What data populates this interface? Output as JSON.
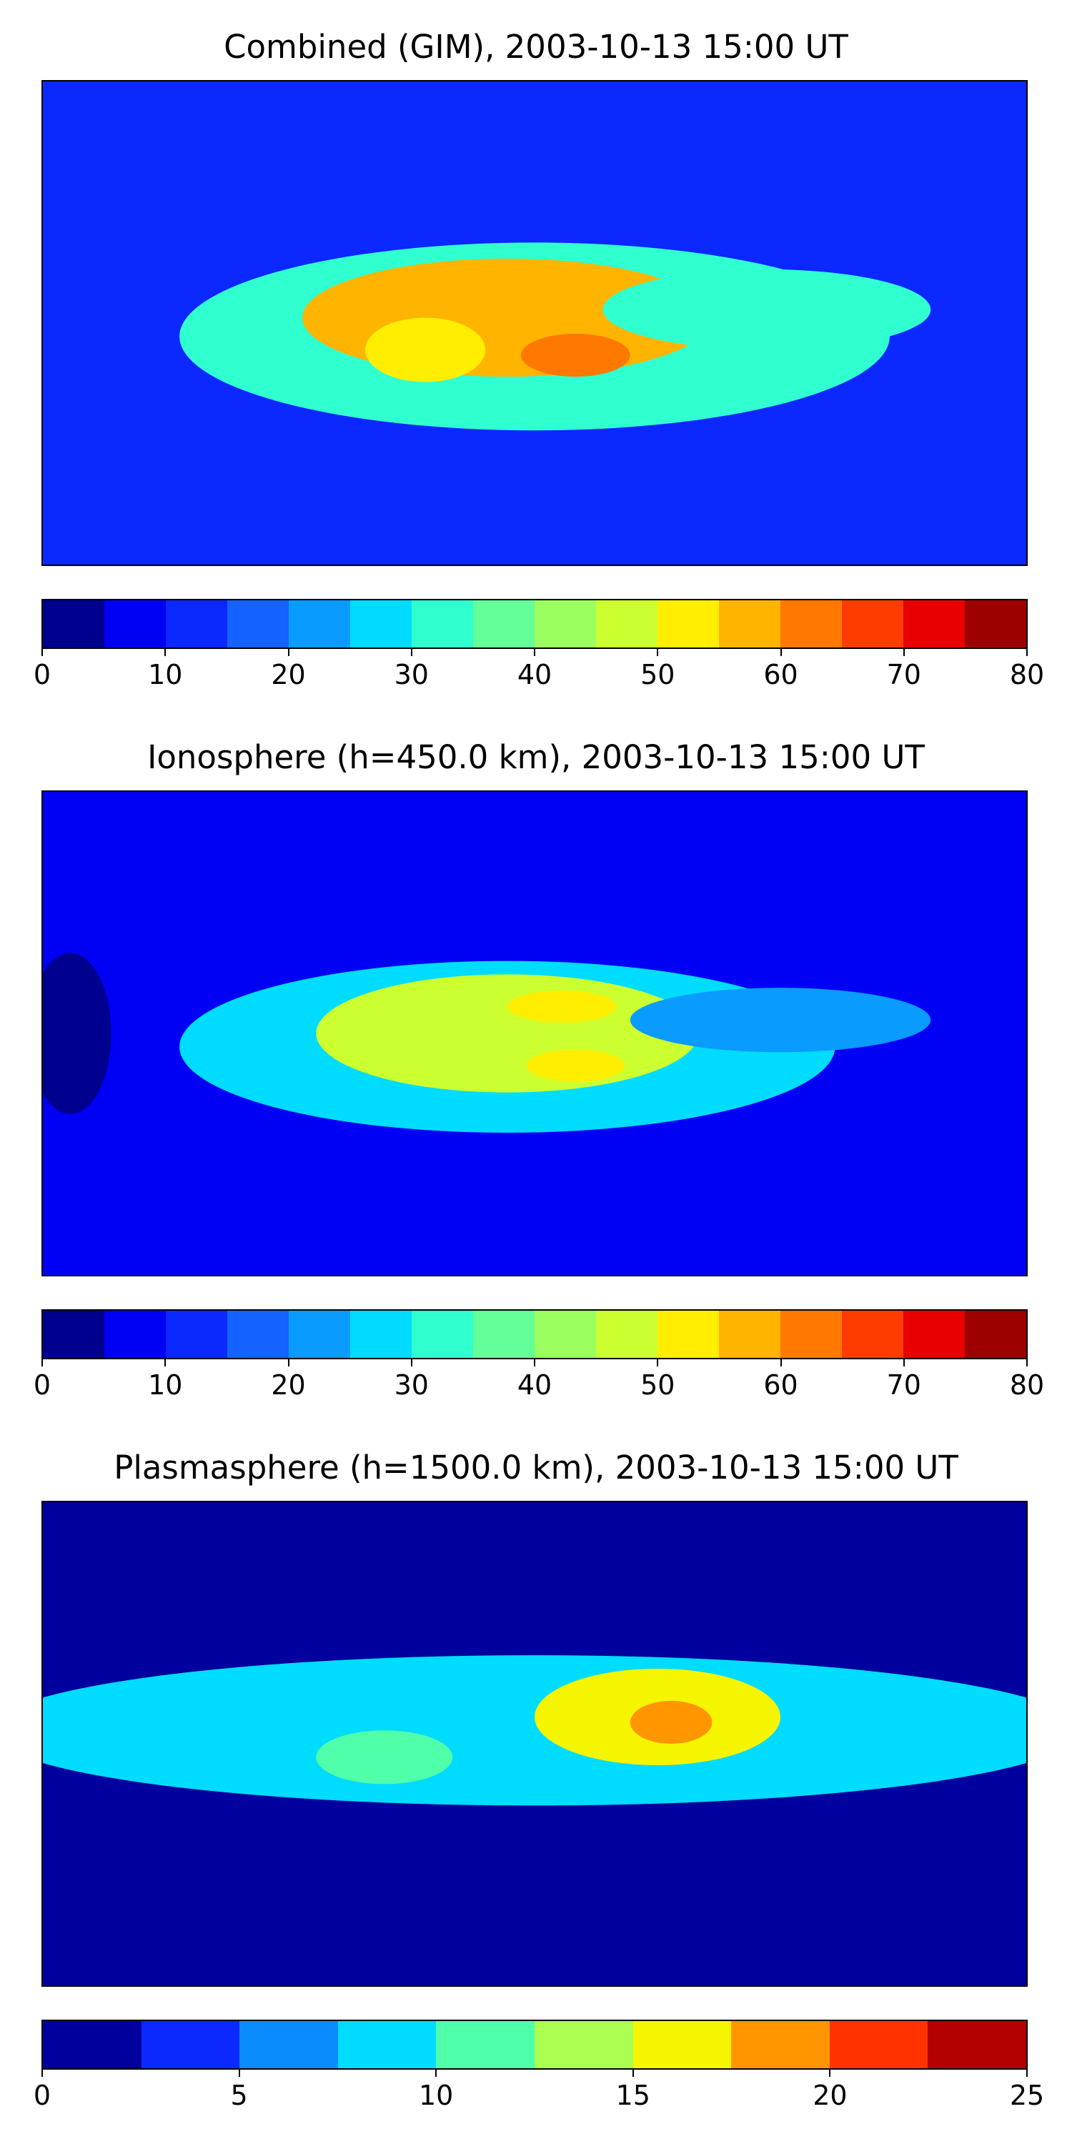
{
  "chart_data": [
    {
      "type": "heatmap",
      "title": "Combined (GIM), 2003-10-13 15:00 UT",
      "x_range": [
        -180,
        180
      ],
      "y_range": [
        -90,
        90
      ],
      "colorbar": {
        "min": 0,
        "max": 80,
        "step": 5,
        "ticks": [
          0,
          10,
          20,
          30,
          40,
          50,
          60,
          70,
          80
        ],
        "colors": [
          "#00008f",
          "#0000f5",
          "#0a28ff",
          "#1462ff",
          "#0a9bff",
          "#00dcff",
          "#30ffd0",
          "#64ff98",
          "#9cff60",
          "#ccff30",
          "#ffee00",
          "#ffb400",
          "#ff7800",
          "#ff3c00",
          "#e80000",
          "#9e0000"
        ]
      },
      "background_value": 13,
      "features": [
        {
          "name": "equatorial-belt",
          "lon": 0,
          "lat": -5,
          "lon_radius": 130,
          "lat_radius": 35,
          "value": 33
        },
        {
          "name": "atlantic-peak",
          "lon": -10,
          "lat": 2,
          "lon_radius": 75,
          "lat_radius": 22,
          "value": 58
        },
        {
          "name": "south-america-crest",
          "lon": -40,
          "lat": -10,
          "lon_radius": 22,
          "lat_radius": 12,
          "value": 53
        },
        {
          "name": "africa-crest",
          "lon": 15,
          "lat": -12,
          "lon_radius": 20,
          "lat_radius": 8,
          "value": 63
        },
        {
          "name": "indian-ocean-tongue",
          "lon": 85,
          "lat": 5,
          "lon_radius": 60,
          "lat_radius": 15,
          "value": 33
        },
        {
          "name": "pacific-low",
          "lon": -150,
          "lat": -15,
          "lon_radius": 20,
          "lat_radius": 18,
          "value": 10
        }
      ]
    },
    {
      "type": "heatmap",
      "title": "Ionosphere  (h=450.0 km), 2003-10-13 15:00 UT",
      "x_range": [
        -180,
        180
      ],
      "y_range": [
        -90,
        90
      ],
      "colorbar": {
        "min": 0,
        "max": 80,
        "step": 5,
        "ticks": [
          0,
          10,
          20,
          30,
          40,
          50,
          60,
          70,
          80
        ],
        "colors": [
          "#00008f",
          "#0000f5",
          "#0a28ff",
          "#1462ff",
          "#0a9bff",
          "#00dcff",
          "#30ffd0",
          "#64ff98",
          "#9cff60",
          "#ccff30",
          "#ffee00",
          "#ffb400",
          "#ff7800",
          "#ff3c00",
          "#e80000",
          "#9e0000"
        ]
      },
      "background_value": 9,
      "features": [
        {
          "name": "equatorial-belt",
          "lon": -10,
          "lat": -5,
          "lon_radius": 120,
          "lat_radius": 32,
          "value": 26
        },
        {
          "name": "atlantic-peak",
          "lon": -10,
          "lat": 0,
          "lon_radius": 70,
          "lat_radius": 22,
          "value": 46
        },
        {
          "name": "north-crest",
          "lon": 10,
          "lat": 10,
          "lon_radius": 20,
          "lat_radius": 6,
          "value": 51
        },
        {
          "name": "south-crest",
          "lon": 15,
          "lat": -12,
          "lon_radius": 18,
          "lat_radius": 6,
          "value": 51
        },
        {
          "name": "indian-ocean-tongue",
          "lon": 90,
          "lat": 5,
          "lon_radius": 55,
          "lat_radius": 12,
          "value": 24
        },
        {
          "name": "pacific-low",
          "lon": -170,
          "lat": 0,
          "lon_radius": 15,
          "lat_radius": 30,
          "value": 4
        }
      ]
    },
    {
      "type": "heatmap",
      "title": "Plasmasphere (h=1500.0 km), 2003-10-13 15:00 UT",
      "x_range": [
        -180,
        180
      ],
      "y_range": [
        -90,
        90
      ],
      "colorbar": {
        "min": 0,
        "max": 25,
        "step": 2.5,
        "ticks": [
          0,
          5,
          10,
          15,
          20,
          25
        ],
        "colors": [
          "#00009f",
          "#0a28ff",
          "#0a8cff",
          "#00dcff",
          "#50ffaa",
          "#aaff50",
          "#f5f500",
          "#ff9600",
          "#ff3200",
          "#b40000"
        ]
      },
      "background_value": 1.5,
      "features": [
        {
          "name": "equatorial-band",
          "lon": 0,
          "lat": 5,
          "lon_radius": 200,
          "lat_radius": 28,
          "value": 8.5
        },
        {
          "name": "east-africa-peak",
          "lon": 45,
          "lat": 10,
          "lon_radius": 45,
          "lat_radius": 18,
          "value": 15.5
        },
        {
          "name": "horn-of-africa-max",
          "lon": 50,
          "lat": 8,
          "lon_radius": 15,
          "lat_radius": 8,
          "value": 18
        },
        {
          "name": "south-america-spot",
          "lon": -55,
          "lat": -5,
          "lon_radius": 25,
          "lat_radius": 10,
          "value": 11.5
        }
      ]
    }
  ]
}
